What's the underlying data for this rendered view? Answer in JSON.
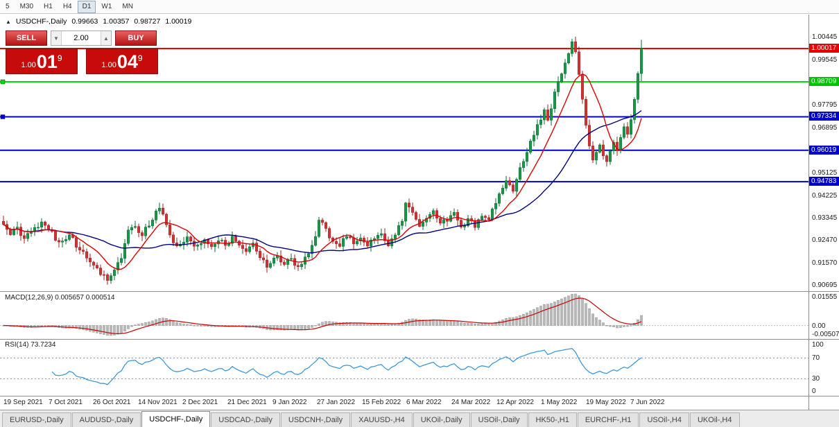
{
  "toolbar": {
    "timeframes": [
      "5",
      "M30",
      "H1",
      "H4",
      "D1",
      "W1",
      "MN"
    ],
    "active_timeframe": "D1"
  },
  "chart_header": {
    "collapse_icon": "▲",
    "symbol": "USDCHF-,Daily",
    "open": "0.99663",
    "high": "1.00357",
    "low": "0.98727",
    "close": "1.00019"
  },
  "trade_panel": {
    "sell_label": "SELL",
    "buy_label": "BUY",
    "volume": "2.00",
    "spinner_down_icon": "▼",
    "spinner_up_icon": "▲",
    "bid": {
      "prefix": "1.00",
      "big": "01",
      "sup": "9"
    },
    "ask": {
      "prefix": "1.00",
      "big": "04",
      "sup": "9"
    }
  },
  "price_axis": {
    "labels": [
      {
        "text": "1.00445",
        "price": 1.00445
      },
      {
        "text": "0.99545",
        "price": 0.99545
      },
      {
        "text": "0.97795",
        "price": 0.97795
      },
      {
        "text": "0.96895",
        "price": 0.96895
      },
      {
        "text": "0.95125",
        "price": 0.95125
      },
      {
        "text": "0.94225",
        "price": 0.94225
      },
      {
        "text": "0.93345",
        "price": 0.93345
      },
      {
        "text": "0.92470",
        "price": 0.9247
      },
      {
        "text": "0.91570",
        "price": 0.9157
      },
      {
        "text": "0.90695",
        "price": 0.90695
      }
    ],
    "badges": [
      {
        "text": "1.00017",
        "price": 1.00017,
        "color": "#e60000"
      },
      {
        "text": "0.98709",
        "price": 0.98709,
        "color": "#00c400"
      },
      {
        "text": "0.97334",
        "price": 0.97334,
        "color": "#0000cc"
      },
      {
        "text": "0.96019",
        "price": 0.96019,
        "color": "#0000cc"
      },
      {
        "text": "0.94783",
        "price": 0.94783,
        "color": "#0000cc"
      }
    ]
  },
  "levels": [
    {
      "price": 1.00017,
      "color": "#ee0000",
      "width": 2,
      "marker": false
    },
    {
      "price": 0.98709,
      "color": "#00dd00",
      "width": 2,
      "marker": true
    },
    {
      "price": 0.97334,
      "color": "#0000cc",
      "width": 2,
      "marker": true
    },
    {
      "price": 0.96019,
      "color": "#0000cc",
      "width": 2,
      "marker": false
    },
    {
      "price": 0.94783,
      "color": "#0000cc",
      "width": 2,
      "marker": false
    }
  ],
  "macd_panel": {
    "label": "MACD(12,26,9) 0.005657 0.000514",
    "axis_top": "0.01555",
    "axis_zero": "0.00",
    "axis_bottom": "-0.00507"
  },
  "rsi_panel": {
    "label": "RSI(14) 73.7234",
    "axis": [
      100,
      70,
      30,
      0
    ],
    "levels": [
      70,
      30
    ]
  },
  "x_axis": {
    "dates": [
      "19 Sep 2021",
      "7 Oct 2021",
      "26 Oct 2021",
      "14 Nov 2021",
      "2 Dec 2021",
      "21 Dec 2021",
      "9 Jan 2022",
      "27 Jan 2022",
      "15 Feb 2022",
      "6 Mar 2022",
      "24 Mar 2022",
      "12 Apr 2022",
      "1 May 2022",
      "19 May 2022",
      "7 Jun 2022"
    ]
  },
  "tabs": {
    "items": [
      "EURUSD-,Daily",
      "AUDUSD-,Daily",
      "USDCHF-,Daily",
      "USDCAD-,Daily",
      "USDCNH-,Daily",
      "XAUUSD-,H4",
      "UKOil-,Daily",
      "USOil-,Daily",
      "HK50-,H1",
      "EURCHF-,H1",
      "USOil-,H4",
      "UKOil-,H4"
    ],
    "active_index": 2
  },
  "chart_data": {
    "type": "candlestick",
    "symbol": "USDCHF",
    "timeframe": "Daily",
    "x_range": [
      "19 Sep 2021",
      "7 Jun 2022"
    ],
    "price_range": [
      0.9048,
      1.0089
    ],
    "candle_count": 185,
    "last_ohlc": {
      "open": 0.99663,
      "high": 1.00357,
      "low": 0.98727,
      "close": 1.00019
    },
    "close_anchors": [
      [
        0,
        0.931
      ],
      [
        2,
        0.927
      ],
      [
        4,
        0.93
      ],
      [
        6,
        0.9255
      ],
      [
        8,
        0.928
      ],
      [
        11,
        0.932
      ],
      [
        13,
        0.929
      ],
      [
        16,
        0.924
      ],
      [
        19,
        0.9268
      ],
      [
        22,
        0.921
      ],
      [
        25,
        0.9165
      ],
      [
        28,
        0.9115
      ],
      [
        30,
        0.909
      ],
      [
        32,
        0.913
      ],
      [
        34,
        0.9175
      ],
      [
        36,
        0.929
      ],
      [
        38,
        0.93
      ],
      [
        40,
        0.9268
      ],
      [
        43,
        0.933
      ],
      [
        45,
        0.9375
      ],
      [
        47,
        0.931
      ],
      [
        49,
        0.924
      ],
      [
        51,
        0.923
      ],
      [
        53,
        0.9262
      ],
      [
        55,
        0.9225
      ],
      [
        58,
        0.9252
      ],
      [
        60,
        0.9222
      ],
      [
        62,
        0.9246
      ],
      [
        64,
        0.923
      ],
      [
        66,
        0.9262
      ],
      [
        68,
        0.9226
      ],
      [
        70,
        0.9206
      ],
      [
        72,
        0.924
      ],
      [
        74,
        0.918
      ],
      [
        76,
        0.914
      ],
      [
        77,
        0.9158
      ],
      [
        79,
        0.9188
      ],
      [
        81,
        0.9152
      ],
      [
        83,
        0.9176
      ],
      [
        85,
        0.9146
      ],
      [
        87,
        0.918
      ],
      [
        89,
        0.923
      ],
      [
        90,
        0.9262
      ],
      [
        91,
        0.933
      ],
      [
        93,
        0.9292
      ],
      [
        95,
        0.9246
      ],
      [
        97,
        0.9226
      ],
      [
        99,
        0.9262
      ],
      [
        101,
        0.9232
      ],
      [
        103,
        0.9256
      ],
      [
        105,
        0.9226
      ],
      [
        107,
        0.9252
      ],
      [
        109,
        0.9272
      ],
      [
        111,
        0.9226
      ],
      [
        113,
        0.9272
      ],
      [
        115,
        0.932
      ],
      [
        116,
        0.9392
      ],
      [
        118,
        0.9356
      ],
      [
        120,
        0.93
      ],
      [
        122,
        0.9332
      ],
      [
        124,
        0.9366
      ],
      [
        126,
        0.9312
      ],
      [
        128,
        0.9322
      ],
      [
        130,
        0.9356
      ],
      [
        132,
        0.93
      ],
      [
        134,
        0.9332
      ],
      [
        136,
        0.9296
      ],
      [
        138,
        0.9342
      ],
      [
        140,
        0.933
      ],
      [
        141,
        0.9372
      ],
      [
        143,
        0.9432
      ],
      [
        145,
        0.9482
      ],
      [
        147,
        0.9442
      ],
      [
        149,
        0.9532
      ],
      [
        151,
        0.9592
      ],
      [
        152,
        0.964
      ],
      [
        154,
        0.97
      ],
      [
        156,
        0.9762
      ],
      [
        157,
        0.9722
      ],
      [
        159,
        0.9832
      ],
      [
        161,
        0.9902
      ],
      [
        163,
        0.9982
      ],
      [
        164,
        1.003
      ],
      [
        165,
        0.999
      ],
      [
        166,
        0.99
      ],
      [
        167,
        0.98
      ],
      [
        168,
        0.97
      ],
      [
        169,
        0.962
      ],
      [
        170,
        0.956
      ],
      [
        171,
        0.9592
      ],
      [
        172,
        0.9622
      ],
      [
        173,
        0.9582
      ],
      [
        174,
        0.9556
      ],
      [
        175,
        0.9602
      ],
      [
        176,
        0.9632
      ],
      [
        177,
        0.9602
      ],
      [
        178,
        0.9652
      ],
      [
        179,
        0.9692
      ],
      [
        180,
        0.9662
      ],
      [
        181,
        0.9722
      ],
      [
        182,
        0.9802
      ],
      [
        183,
        0.9902
      ],
      [
        184,
        1.0002
      ]
    ],
    "seed": 42,
    "noise": 0.0012,
    "wick": 0.0018,
    "ma_fast_period": 10,
    "ma_slow_period": 30,
    "macd_params": [
      12,
      26,
      9
    ],
    "rsi_period": 14,
    "colors": {
      "bull": "#159a45",
      "bull_border": "#0b6b30",
      "bear": "#d63031",
      "bear_border": "#9c1f1f",
      "ma_fast": "#dd0000",
      "ma_slow": "#000080",
      "macd_hist": "#b8b8b8",
      "macd_hist_border": "#8f8f8f",
      "macd_signal": "#cc0000",
      "rsi": "#3a99d9",
      "rsi_level": "#8a8fbf"
    }
  }
}
